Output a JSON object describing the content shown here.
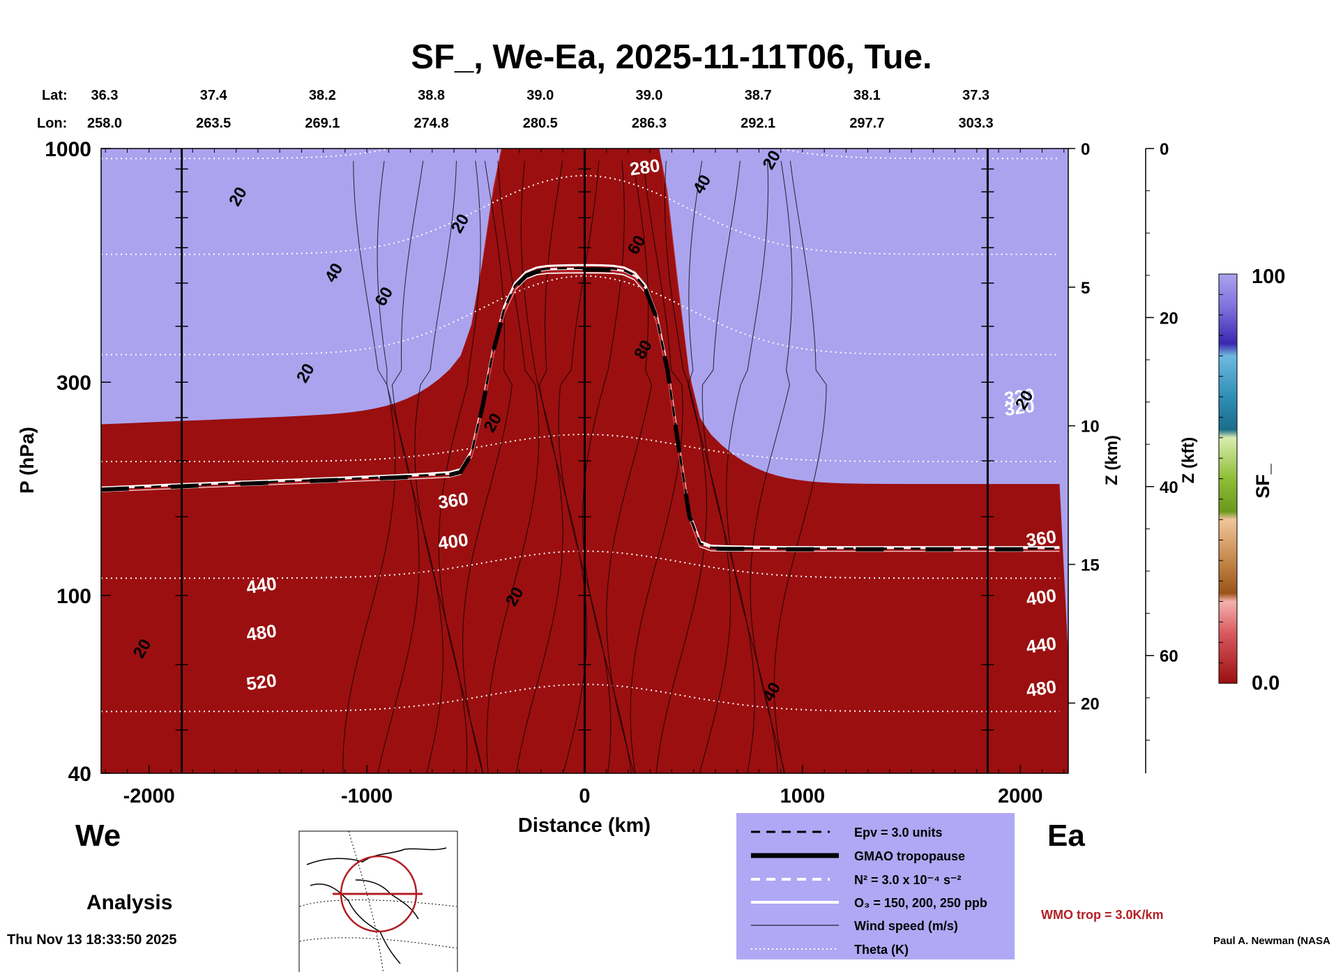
{
  "chart_data": {
    "type": "heatmap",
    "title": "SF_, We-Ea, 2025-11-11T06, Tue.",
    "xlabel": "Distance (km)",
    "ylabel": "P (hPa)",
    "z_km_label": "Z (km)",
    "z_kft_label": "Z (kft)",
    "xlim": [
      -2220,
      2220
    ],
    "ylim_hpa": [
      1000,
      40
    ],
    "y_scale": "log",
    "x_ticks": [
      "-2000",
      "-1000",
      "0",
      "1000",
      "2000"
    ],
    "x_tick_values": [
      -2000,
      -1000,
      0,
      1000,
      2000
    ],
    "y_ticks": [
      "40",
      "100",
      "300",
      "1000"
    ],
    "y_tick_values": [
      40,
      100,
      300,
      1000
    ],
    "z_km_ticks": [
      "0",
      "5",
      "10",
      "15",
      "20"
    ],
    "z_km_values": [
      0,
      5,
      10,
      15,
      20
    ],
    "z_kft_ticks": [
      "0",
      "20",
      "40",
      "60"
    ],
    "z_kft_values": [
      0,
      20,
      40,
      60
    ],
    "lat_label": "Lat:",
    "lon_label": "Lon:",
    "lat": [
      "36.3",
      "37.4",
      "38.2",
      "38.8",
      "39.0",
      "39.0",
      "38.7",
      "38.1",
      "37.3"
    ],
    "lon": [
      "258.0",
      "263.5",
      "269.1",
      "274.8",
      "280.5",
      "286.3",
      "292.1",
      "297.7",
      "303.3"
    ],
    "lonlat_positions_km": [
      -2220,
      -1720,
      -1220,
      -720,
      -220,
      280,
      780,
      1280,
      1780
    ],
    "vertical_markers_km": [
      -1850,
      0,
      1850
    ],
    "colorbar": {
      "label": "SF_",
      "min": "0.0",
      "max": "100",
      "colors": [
        "#9b0f10",
        "#b8292c",
        "#d7575d",
        "#ed8f91",
        "#f6b8b3",
        "#a2581b",
        "#bd7e3e",
        "#d9a86a",
        "#f0c59b",
        "#6e9c1c",
        "#8fbd31",
        "#b5d76e",
        "#dcecaf",
        "#1f6c8e",
        "#2e8fb5",
        "#62b3d6",
        "#9fd3ea",
        "#2a1298",
        "#3f2cb4",
        "#5c4ed0",
        "#8c82e6",
        "#aba3ee"
      ]
    },
    "theta_labels": [
      "520",
      "480",
      "440",
      "400",
      "360",
      "320",
      "280",
      "480",
      "440",
      "400",
      "360",
      "320"
    ],
    "wind_labels": [
      "20",
      "20",
      "20",
      "20",
      "40",
      "60",
      "20",
      "20",
      "40",
      "60",
      "80",
      "40",
      "20",
      "20"
    ],
    "left_label": "We",
    "right_label": "Ea",
    "analysis_label": "Analysis",
    "legend": [
      {
        "label": "Epv = 3.0 units",
        "style": "dashed-black"
      },
      {
        "label": "GMAO tropopause",
        "style": "thick-black"
      },
      {
        "label": "N² = 3.0 x 10⁻⁴ s⁻²",
        "style": "dashed-white"
      },
      {
        "label": "O₃ = 150, 200, 250 ppb",
        "style": "solid-white"
      },
      {
        "label": "Wind speed (m/s)",
        "style": "thin-black"
      },
      {
        "label": "Theta (K)",
        "style": "dotted-white"
      }
    ],
    "legend_bg": "#b0a8f4",
    "wmo_label": "WMO trop = 3.0K/km",
    "wmo_color": "#b21f24",
    "timestamp": "Thu Nov 13 18:33:50 2025",
    "credit": "Paul A. Newman (NASA"
  }
}
